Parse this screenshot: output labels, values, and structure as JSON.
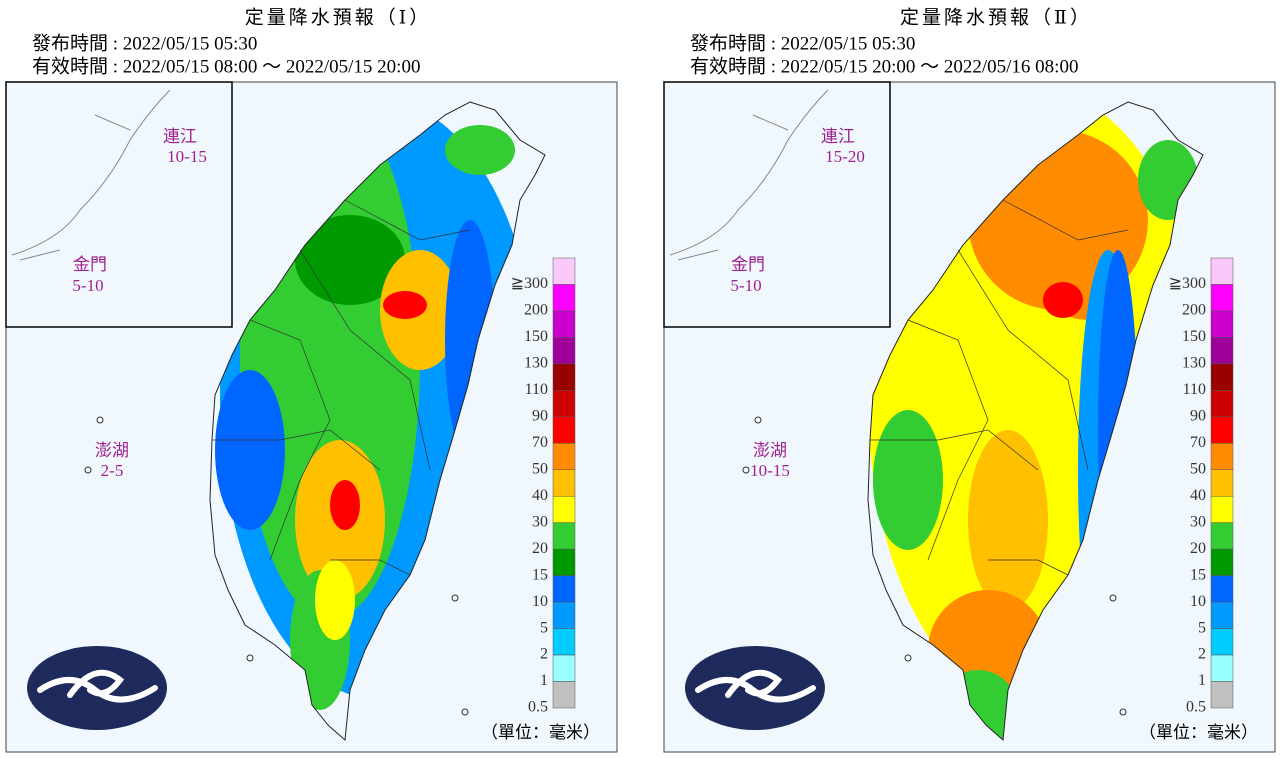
{
  "panels": [
    {
      "title": "定量降水預報（Ⅰ）",
      "issued": "發布時間 : 2022/05/15 05:30",
      "valid": "有效時間 : 2022/05/15 08:00 ～ 2022/05/15 20:00",
      "islands": [
        {
          "name": "連江",
          "range": "10-15"
        },
        {
          "name": "金門",
          "range": "5-10"
        },
        {
          "name": "澎湖",
          "range": "2-5"
        }
      ]
    },
    {
      "title": "定量降水預報（Ⅱ）",
      "issued": "發布時間 : 2022/05/15 05:30",
      "valid": "有效時間 : 2022/05/15 20:00 ～ 2022/05/16 08:00",
      "islands": [
        {
          "name": "連江",
          "range": "15-20"
        },
        {
          "name": "金門",
          "range": "5-10"
        },
        {
          "name": "澎湖",
          "range": "10-15"
        }
      ]
    }
  ],
  "legend": {
    "labels": [
      "≧300",
      "200",
      "150",
      "130",
      "110",
      "90",
      "70",
      "50",
      "40",
      "30",
      "20",
      "15",
      "10",
      "5",
      "2",
      "1",
      "0.5"
    ],
    "colors": [
      "#fbc8fa",
      "#ff00ff",
      "#cc00cc",
      "#a0009a",
      "#990000",
      "#cc0000",
      "#ff0000",
      "#ff8c00",
      "#ffc000",
      "#ffff00",
      "#33cc33",
      "#009900",
      "#0066ff",
      "#0099ff",
      "#00ccff",
      "#99ffff",
      "#c0c0c0"
    ]
  },
  "unit": "（單位：毫米）"
}
